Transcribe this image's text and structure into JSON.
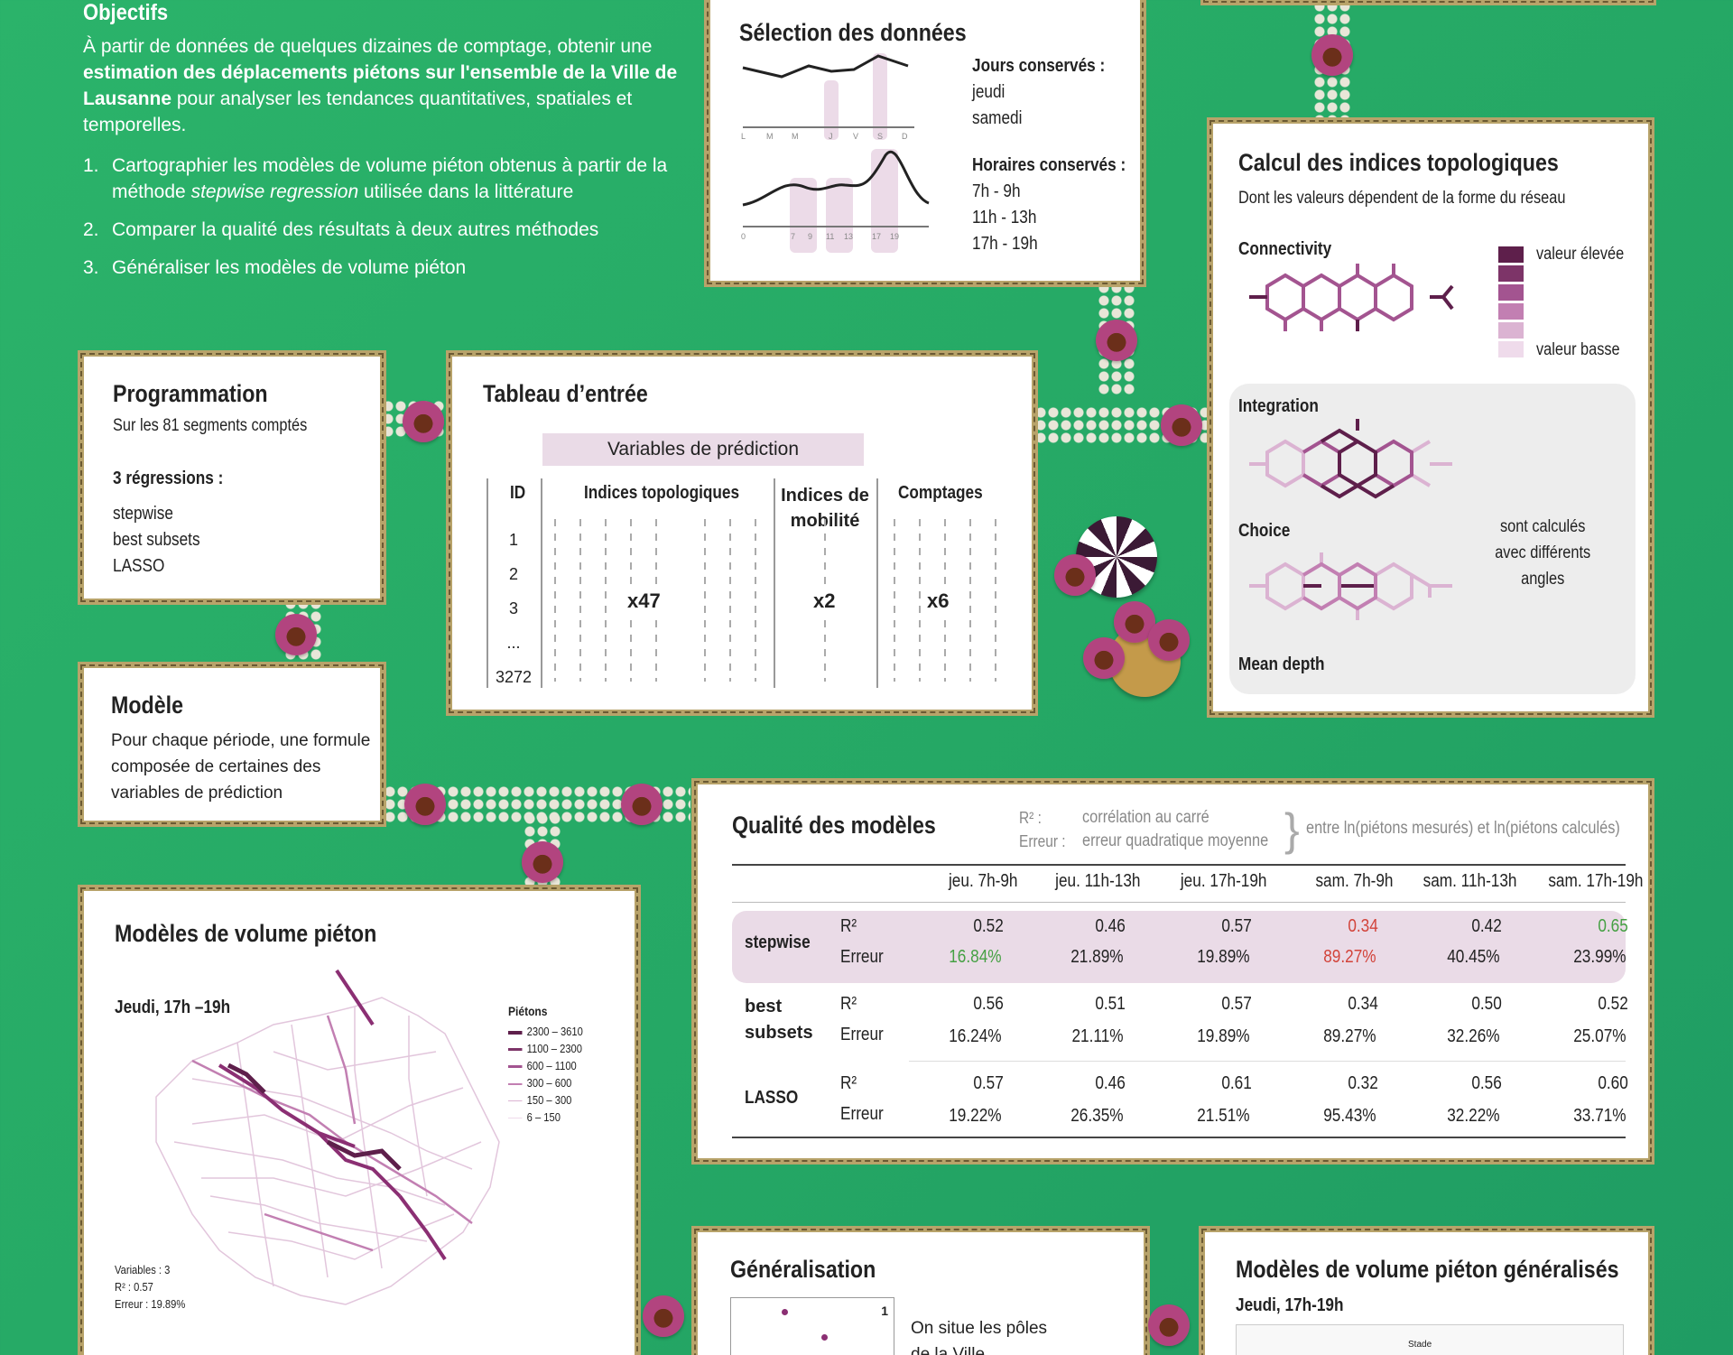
{
  "objectifs": {
    "title": "Objectifs",
    "intro_pre": "À partir de données de quelques dizaines de comptage, obtenir une ",
    "intro_bold": "estimation des déplacements piétons sur l'ensemble de la Ville de Lausanne",
    "intro_post": " pour analyser les tendances quantitatives, spatiales et temporelles.",
    "items": [
      {
        "n": "1.",
        "pre": "Cartographier les modèles de volume piéton obtenus à partir de la méthode ",
        "em": "stepwise regression",
        "post": " utilisée dans la littérature"
      },
      {
        "n": "2.",
        "pre": "Comparer la qualité des résultats à deux autres méthodes",
        "em": "",
        "post": ""
      },
      {
        "n": "3.",
        "pre": "Généraliser les modèles de volume piéton",
        "em": "",
        "post": ""
      }
    ]
  },
  "selection": {
    "title": "Sélection des données",
    "jours_label": "Jours conservés :",
    "jours": [
      "jeudi",
      "samedi"
    ],
    "horaires_label": "Horaires conservés :",
    "horaires": [
      "7h - 9h",
      "11h - 13h",
      "17h - 19h"
    ],
    "day_ticks": [
      "L",
      "M",
      "M",
      "J",
      "V",
      "S",
      "D"
    ],
    "hour_ticks": [
      "0",
      "7",
      "9",
      "11",
      "13",
      "17",
      "19"
    ]
  },
  "topo": {
    "title": "Calcul des indices topologiques",
    "subtitle": "Dont les valeurs dépendent de la forme du réseau",
    "connectivity": "Connectivity",
    "integration": "Integration",
    "choice": "Choice",
    "mean_depth": "Mean depth",
    "legend_high": "valeur élevée",
    "legend_low": "valeur basse",
    "angles_note": "sont calculés avec différents angles",
    "legend_colors": [
      "#5e1f4b",
      "#7d3468",
      "#a35490",
      "#c27fb2",
      "#dbb3d2",
      "#efdbeb"
    ]
  },
  "programmation": {
    "title": "Programmation",
    "subtitle": "Sur les 81 segments comptés",
    "reg_label": "3 régressions :",
    "regs": [
      "stepwise",
      "best subsets",
      "LASSO"
    ]
  },
  "tableau": {
    "title": "Tableau d’entrée",
    "banner": "Variables de prédiction",
    "col_id": "ID",
    "col_topo": "Indices topologiques",
    "col_mob": "Indices de mobilité",
    "col_count": "Comptages",
    "ids": [
      "1",
      "2",
      "3",
      "...",
      "3272"
    ],
    "x_topo": "x47",
    "x_mob": "x2",
    "x_count": "x6"
  },
  "modele": {
    "title": "Modèle",
    "text": "Pour chaque période, une formule composée de certaines des variables de prédiction"
  },
  "qualite": {
    "title": "Qualité des modèles",
    "r2_key": "R² :",
    "r2_desc": "corrélation au carré",
    "err_key": "Erreur :",
    "err_desc": "erreur quadratique moyenne",
    "between": "entre ln(piétons mesurés) et ln(piétons calculés)",
    "columns": [
      "jeu. 7h-9h",
      "jeu. 11h-13h",
      "jeu. 17h-19h",
      "sam. 7h-9h",
      "sam. 11h-13h",
      "sam. 17h-19h"
    ],
    "r2_label": "R²",
    "err_label": "Erreur",
    "rows": [
      {
        "name": "stepwise",
        "r2": [
          "0.52",
          "0.46",
          "0.57",
          "0.34",
          "0.42",
          "0.65"
        ],
        "err": [
          "16.84%",
          "21.89%",
          "19.89%",
          "89.27%",
          "40.45%",
          "23.99%"
        ]
      },
      {
        "name": "best subsets",
        "r2": [
          "0.56",
          "0.51",
          "0.57",
          "0.34",
          "0.50",
          "0.52"
        ],
        "err": [
          "16.24%",
          "21.11%",
          "19.89%",
          "89.27%",
          "32.26%",
          "25.07%"
        ]
      },
      {
        "name": "LASSO",
        "r2": [
          "0.57",
          "0.46",
          "0.61",
          "0.32",
          "0.56",
          "0.60"
        ],
        "err": [
          "19.22%",
          "26.35%",
          "21.51%",
          "95.43%",
          "32.22%",
          "33.71%"
        ]
      }
    ]
  },
  "volume": {
    "title": "Modèles de volume piéton",
    "subtitle": "Jeudi, 17h –19h",
    "legend_title": "Piétons",
    "legend": [
      "2300 – 3610",
      "1100 – 2300",
      "600 – 1100",
      "300 – 600",
      "150 – 300",
      "6 – 150"
    ],
    "stats": [
      "Variables : 3",
      "R² :  0.57",
      "Erreur : 19.89%"
    ]
  },
  "generalisation": {
    "title": "Généralisation",
    "text": "On situe les pôles de la Ville",
    "map_num": "1"
  },
  "generalises": {
    "title": "Modèles de volume piéton généralisés",
    "subtitle": "Jeudi, 17h-19h",
    "map_label": "Stade"
  },
  "colors": {
    "background": "#25a865",
    "purple": "#8b2f73",
    "pink_bg": "#eadbe7",
    "frame": "#b8a36a"
  }
}
